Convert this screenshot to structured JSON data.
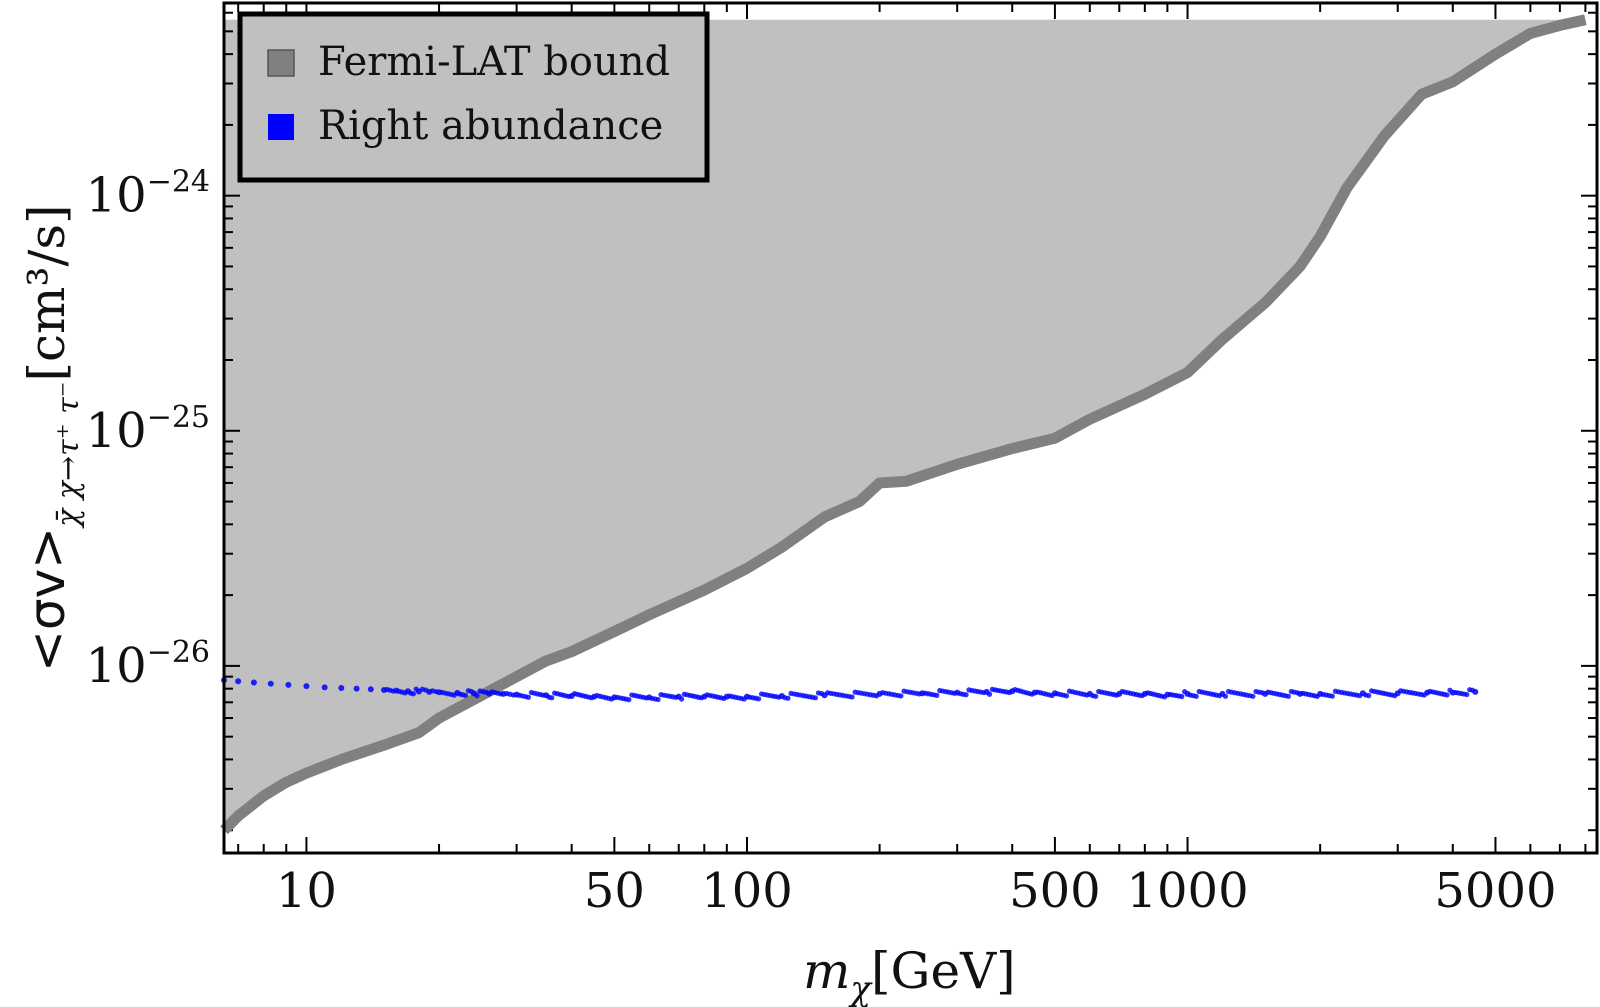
{
  "chart_data": {
    "type": "scatter",
    "xscale": "log",
    "yscale": "log",
    "xlim": [
      6.5,
      8500
    ],
    "ylim": [
      1.6e-27,
      6.6e-24
    ],
    "xlabel": {
      "main": "m",
      "sub": "χ",
      "unit": "[GeV]"
    },
    "ylabel": {
      "main": "<σv>",
      "sub": "χ̄ χ→τ⁺ τ⁻",
      "unit": "[cm³/s]"
    },
    "x_ticks": [
      {
        "value": 10,
        "label": "10"
      },
      {
        "value": 50,
        "label": "50"
      },
      {
        "value": 100,
        "label": "100"
      },
      {
        "value": 500,
        "label": "500"
      },
      {
        "value": 1000,
        "label": "1000"
      },
      {
        "value": 5000,
        "label": "5000"
      }
    ],
    "y_ticks": [
      {
        "value": 1e-26,
        "base": "10",
        "exp": "−26"
      },
      {
        "value": 1e-25,
        "base": "10",
        "exp": "−25"
      },
      {
        "value": 1e-24,
        "base": "10",
        "exp": "−24"
      }
    ],
    "legend": [
      {
        "label": "Fermi-LAT bound",
        "color": "#808080"
      },
      {
        "label": "Right abundance",
        "color": "#0000ff"
      }
    ],
    "series": [
      {
        "name": "Fermi-LAT bound",
        "kind": "line+fill-above",
        "color": "#808080",
        "fill": "#c0c0c0",
        "fill_top": 5.6e-24,
        "x": [
          6.5,
          7,
          8,
          9,
          10,
          12,
          15,
          18,
          20,
          25,
          30,
          35,
          40,
          50,
          60,
          80,
          100,
          120,
          150,
          180,
          200,
          230,
          300,
          400,
          500,
          600,
          800,
          1000,
          1200,
          1500,
          1800,
          2000,
          2300,
          2800,
          3400,
          4000,
          5000,
          6000,
          7000,
          8000
        ],
        "y": [
          2e-27,
          2.3e-27,
          2.8e-27,
          3.2e-27,
          3.5e-27,
          4e-27,
          4.6e-27,
          5.2e-27,
          6e-27,
          7.5e-27,
          9e-27,
          1.05e-26,
          1.15e-26,
          1.4e-26,
          1.65e-26,
          2.1e-26,
          2.6e-26,
          3.2e-26,
          4.3e-26,
          5e-26,
          6e-26,
          6.1e-26,
          7.2e-26,
          8.4e-26,
          9.3e-26,
          1.12e-25,
          1.43e-25,
          1.77e-25,
          2.45e-25,
          3.5e-25,
          5e-25,
          6.7e-25,
          1.08e-24,
          1.8e-24,
          2.7e-24,
          3.05e-24,
          4e-24,
          4.9e-24,
          5.3e-24,
          5.6e-24
        ]
      },
      {
        "name": "Right abundance",
        "kind": "scatter",
        "color": "#0000ff",
        "points": [
          [
            6.5,
            8.7e-27
          ],
          [
            7.0,
            8.6e-27
          ],
          [
            7.6,
            8.5e-27
          ],
          [
            8.3,
            8.4e-27
          ],
          [
            9.1,
            8.3e-27
          ],
          [
            10.0,
            8.2e-27
          ],
          [
            11.0,
            8.1e-27
          ],
          [
            12.0,
            8.05e-27
          ],
          [
            13.0,
            8e-27
          ],
          [
            14.0,
            7.95e-27
          ],
          [
            15.0,
            7.9e-27
          ],
          [
            16.0,
            7.85e-27
          ],
          [
            17.0,
            7.8e-27
          ],
          [
            18.0,
            7.78e-27
          ],
          [
            19.0,
            7.75e-27
          ],
          [
            20.0,
            7.72e-27
          ],
          [
            22.0,
            7.68e-27
          ],
          [
            24.0,
            7.65e-27
          ],
          [
            26.0,
            7.62e-27
          ],
          [
            28.0,
            7.6e-27
          ],
          [
            30.0,
            7.55e-27
          ],
          [
            35.0,
            7.5e-27
          ],
          [
            40.0,
            7.45e-27
          ],
          [
            45.0,
            7.4e-27
          ],
          [
            50.0,
            7.35e-27
          ],
          [
            60.0,
            7.35e-27
          ],
          [
            70.0,
            7.4e-27
          ],
          [
            80.0,
            7.4e-27
          ],
          [
            90.0,
            7.4e-27
          ],
          [
            100.0,
            7.4e-27
          ],
          [
            120.0,
            7.45e-27
          ],
          [
            150.0,
            7.5e-27
          ],
          [
            200.0,
            7.6e-27
          ],
          [
            250.0,
            7.65e-27
          ],
          [
            300.0,
            7.7e-27
          ],
          [
            350.0,
            7.75e-27
          ],
          [
            400.0,
            7.8e-27
          ],
          [
            450.0,
            7.7e-27
          ],
          [
            500.0,
            7.65e-27
          ],
          [
            600.0,
            7.6e-27
          ],
          [
            700.0,
            7.6e-27
          ],
          [
            800.0,
            7.6e-27
          ],
          [
            900.0,
            7.55e-27
          ],
          [
            1000.0,
            7.6e-27
          ],
          [
            1200.0,
            7.6e-27
          ],
          [
            1500.0,
            7.6e-27
          ],
          [
            1800.0,
            7.6e-27
          ],
          [
            2000.0,
            7.6e-27
          ],
          [
            2500.0,
            7.65e-27
          ],
          [
            3000.0,
            7.65e-27
          ],
          [
            3500.0,
            7.7e-27
          ],
          [
            4000.0,
            7.7e-27
          ],
          [
            4500.0,
            7.75e-27
          ]
        ]
      }
    ]
  }
}
